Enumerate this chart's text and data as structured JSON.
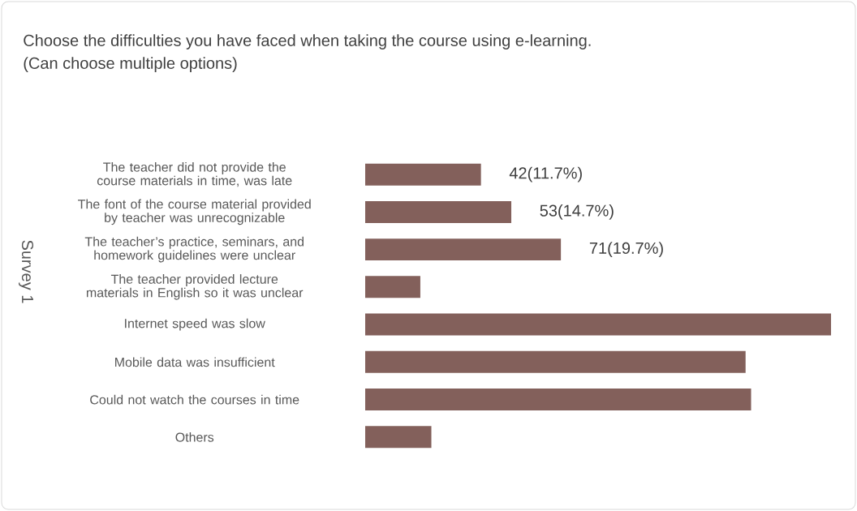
{
  "chart_data": {
    "type": "bar",
    "orientation": "horizontal",
    "title": "Choose the difficulties you have faced when taking the course using e-learning.",
    "subtitle": "(Can choose multiple options)",
    "ylabel": "Survey 1",
    "categories": [
      "The teacher did not provide the course materials in time, was late",
      "The font of the course material provided by teacher was unrecognizable",
      "The teacher’s practice, seminars, and homework guidelines were unclear",
      "The teacher provided lecture materials in English so it was unclear",
      "Internet speed was slow",
      "Mobile data was insufficient",
      "Could not watch the courses in time",
      "Others"
    ],
    "values": [
      42,
      53,
      71,
      20,
      169,
      138,
      140,
      24
    ],
    "value_labels": [
      "42(11.7%)",
      "53(14.7%)",
      "71(19.7%)",
      null,
      null,
      null,
      null,
      null
    ],
    "color": "#83605b"
  }
}
